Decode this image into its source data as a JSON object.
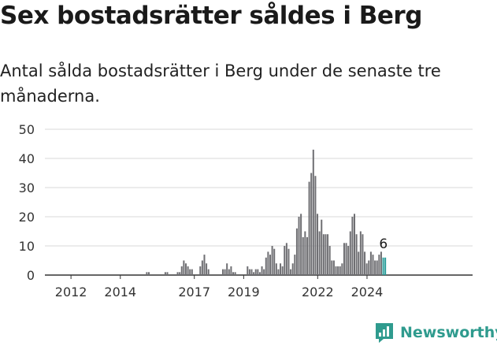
{
  "title": "Sex bostadsrätter såldes i Berg",
  "subtitle": "Antal sålda bostadsrätter i Berg under de senaste tre månaderna.",
  "brand": {
    "name": "Newsworthy",
    "icon": "newsworthy-logo-icon",
    "color": "#2f9b8e"
  },
  "colors": {
    "bar": "#6f6f73",
    "highlight": "#2a9d9a",
    "grid": "#d9d9d9",
    "axis": "#333333"
  },
  "chart_data": {
    "type": "bar",
    "x_type": "month",
    "start_month": "2011-01",
    "ylim": [
      0,
      50
    ],
    "yticks": [
      0,
      10,
      20,
      30,
      40,
      50
    ],
    "xtick_labels": [
      "2012",
      "2014",
      "2017",
      "2019",
      "2022",
      "2024"
    ],
    "xtick_months": [
      "2012-01",
      "2014-01",
      "2017-01",
      "2019-01",
      "2022-01",
      "2024-01"
    ],
    "end_label": "6",
    "highlight_last": 2,
    "values": [
      0,
      0,
      0,
      0,
      0,
      0,
      0,
      0,
      0,
      0,
      0,
      0,
      0,
      0,
      0,
      0,
      0,
      0,
      0,
      0,
      0,
      0,
      0,
      0,
      0,
      0,
      0,
      0,
      0,
      0,
      0,
      0,
      0,
      0,
      0,
      0,
      0,
      0,
      0,
      0,
      0,
      0,
      0,
      0,
      0,
      0,
      0,
      0,
      0,
      1,
      1,
      0,
      0,
      0,
      0,
      0,
      0,
      0,
      1,
      1,
      0,
      0,
      0,
      0,
      1,
      1,
      3,
      5,
      4,
      3,
      2,
      2,
      0,
      0,
      0,
      3,
      5,
      7,
      4,
      2,
      0,
      0,
      0,
      0,
      0,
      0,
      2,
      2,
      4,
      2,
      3,
      1,
      1,
      0,
      0,
      0,
      0,
      0,
      3,
      2,
      2,
      1,
      2,
      2,
      1,
      3,
      2,
      6,
      8,
      7,
      10,
      9,
      4,
      2,
      4,
      3,
      10,
      11,
      9,
      2,
      4,
      7,
      16,
      20,
      21,
      13,
      15,
      13,
      32,
      35,
      43,
      34,
      21,
      15,
      19,
      14,
      14,
      14,
      10,
      5,
      5,
      3,
      3,
      3,
      4,
      11,
      11,
      10,
      15,
      20,
      21,
      14,
      8,
      15,
      14,
      8,
      4,
      5,
      8,
      7,
      5,
      5,
      7,
      8,
      6,
      6
    ]
  }
}
